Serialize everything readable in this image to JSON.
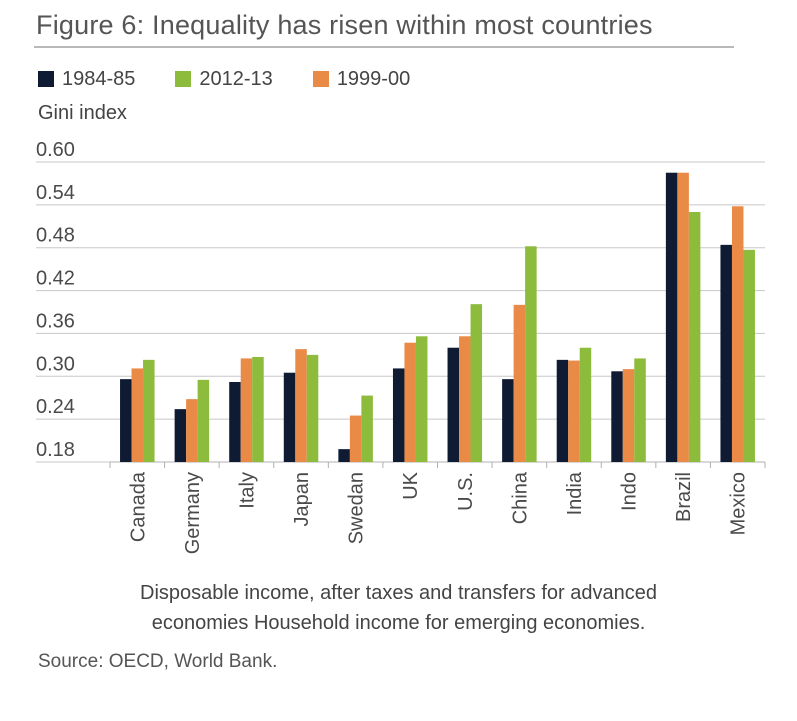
{
  "title": "Figure 6: Inequality has risen within most countries",
  "note_line1": "Disposable income, after taxes and transfers for advanced",
  "note_line2": "economies Household income for emerging economies.",
  "source": "Source: OECD, World Bank.",
  "colors": {
    "s1984": "#0f1a33",
    "s2012": "#8dbb3c",
    "s1999": "#e98a46",
    "grid": "#c8c8c8"
  },
  "chart_data": {
    "type": "bar",
    "ylabel": "Gini index",
    "ylim": [
      0.18,
      0.6
    ],
    "yticks": [
      "0.60",
      "0.54",
      "0.48",
      "0.42",
      "0.36",
      "0.30",
      "0.24",
      "0.18"
    ],
    "categories": [
      "Canada",
      "Germany",
      "Italy",
      "Japan",
      "Swedan",
      "UK",
      "U.S.",
      "China",
      "India",
      "Indo",
      "Brazil",
      "Mexico"
    ],
    "legend": [
      "1984-85",
      "2012-13",
      "1999-00"
    ],
    "series": [
      {
        "name": "1984-85",
        "values": [
          0.296,
          0.254,
          0.292,
          0.305,
          0.198,
          0.311,
          0.34,
          0.296,
          0.323,
          0.307,
          0.585,
          0.484
        ]
      },
      {
        "name": "1999-00",
        "values": [
          0.311,
          0.268,
          0.325,
          0.338,
          0.245,
          0.347,
          0.356,
          0.4,
          0.322,
          0.31,
          0.585,
          0.538
        ]
      },
      {
        "name": "2012-13",
        "values": [
          0.323,
          0.295,
          0.327,
          0.33,
          0.273,
          0.356,
          0.401,
          0.482,
          0.34,
          0.325,
          0.53,
          0.477
        ]
      }
    ]
  }
}
